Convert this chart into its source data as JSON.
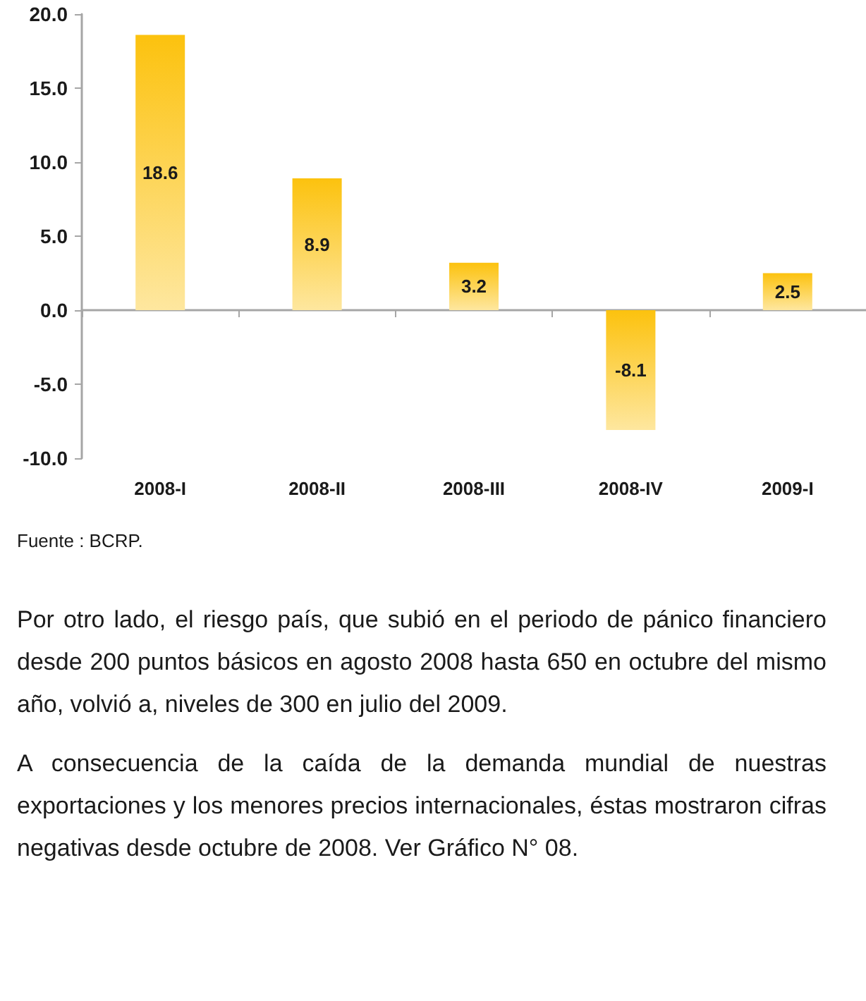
{
  "chart_data": {
    "type": "bar",
    "categories": [
      "2008-I",
      "2008-II",
      "2008-III",
      "2008-IV",
      "2009-I"
    ],
    "values": [
      18.6,
      8.9,
      3.2,
      -8.1,
      2.5
    ],
    "color": "#fcc20e",
    "ylim": [
      -10,
      20
    ],
    "yticks": [
      {
        "value": -10,
        "label": "-10.0"
      },
      {
        "value": -5,
        "label": "-5.0"
      },
      {
        "value": 0,
        "label": "0.0"
      },
      {
        "value": 5,
        "label": "5.0"
      },
      {
        "value": 10,
        "label": "10.0"
      },
      {
        "value": 15,
        "label": "15.0"
      },
      {
        "value": 20,
        "label": "20.0"
      }
    ],
    "data_labels": true,
    "annotations": [
      "Fuente : BCRP.",
      "Por otro lado, el riesgo país, que subió en el periodo de pánico financiero desde 200 puntos básicos en agosto 2008 hasta 650 en octubre del mismo año, volvió a, niveles de 300 en julio del 2009.",
      "A consecuencia de la caída de la demanda mundial de nuestras exportaciones y los menores precios internacionales, éstas mostraron cifras negativas desde octubre de 2008. Ver Gráfico N° 08."
    ]
  }
}
